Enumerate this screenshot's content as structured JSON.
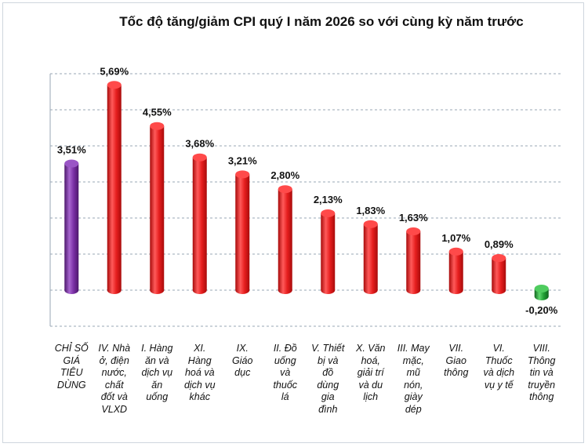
{
  "chart_data": {
    "type": "bar",
    "title": "Tốc độ tăng/giảm CPI quý I năm 2026 so với cùng kỳ năm trước",
    "xlabel": "",
    "ylabel": "",
    "categories": [
      "CHỈ SỐ GIÁ TIÊU DÙNG",
      "IV. Nhà ở, điện nước, chất đốt và VLXD",
      "I. Hàng ăn và dịch vụ ăn uống",
      "XI. Hàng hoá và dịch vụ khác",
      "IX. Giáo dục",
      "II. Đồ uống và thuốc lá",
      "V. Thiết bị và đồ dùng gia đình",
      "X. Văn hoá, giải trí và du lịch",
      "III. May mặc, mũ nón, giày dép",
      "VII. Giao thông",
      "VI. Thuốc và dịch vụ y tế",
      "VIII. Thông tin và truyền thông"
    ],
    "category_lines": [
      [
        "CHỈ SỐ",
        "GIÁ",
        "TIÊU",
        "DÙNG"
      ],
      [
        "IV. Nhà",
        "ở, điện",
        "nước,",
        "chất",
        "đốt và",
        "VLXD"
      ],
      [
        "I. Hàng",
        "ăn và",
        "dịch vụ",
        "ăn",
        "uống"
      ],
      [
        "XI.",
        "Hàng",
        "hoá và",
        "dịch vụ",
        "khác"
      ],
      [
        "IX.",
        "Giáo",
        "dục"
      ],
      [
        "II. Đồ",
        "uống",
        "và",
        "thuốc",
        "lá"
      ],
      [
        "V. Thiết",
        "bị và",
        "đồ",
        "dùng",
        "gia",
        "đình"
      ],
      [
        "X. Văn",
        "hoá,",
        "giải trí",
        "và du",
        "lịch"
      ],
      [
        "III. May",
        "mặc,",
        "mũ",
        "nón,",
        "giày",
        "dép"
      ],
      [
        "VII.",
        "Giao",
        "thông"
      ],
      [
        "VI.",
        "Thuốc",
        "và dịch",
        "vụ y tế"
      ],
      [
        "VIII.",
        "Thông",
        "tin và",
        "truyền",
        "thông"
      ]
    ],
    "values": [
      3.51,
      5.69,
      4.55,
      3.68,
      3.21,
      2.8,
      2.13,
      1.83,
      1.63,
      1.07,
      0.89,
      -0.2
    ],
    "data_labels": [
      "3,51%",
      "5,69%",
      "4,55%",
      "3,68%",
      "3,21%",
      "2,80%",
      "2,13%",
      "1,83%",
      "1,63%",
      "1,07%",
      "0,89%",
      "-0,20%"
    ],
    "ylim": [
      -1,
      6
    ],
    "grid": true,
    "legend": "none",
    "colors": {
      "headline": "#7a2fa5",
      "positive": "#e61e1e",
      "negative": "#22a035",
      "grid": "#9aa7b6"
    }
  }
}
